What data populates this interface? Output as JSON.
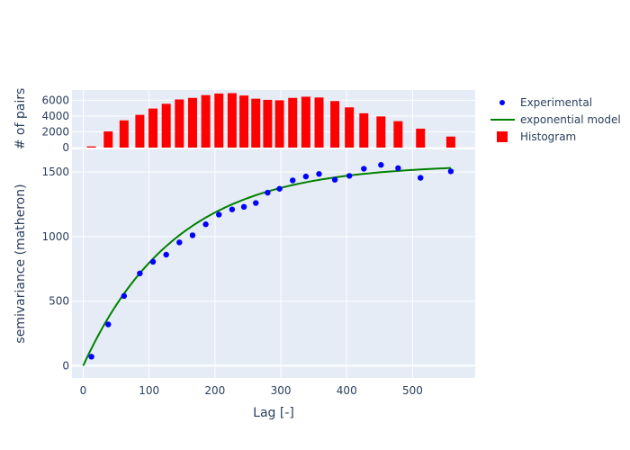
{
  "chart_data": [
    {
      "type": "bar",
      "role": "histogram",
      "ylabel": "# of pairs",
      "x": [
        12.5,
        38,
        62,
        86,
        106,
        126,
        146,
        166,
        186,
        206,
        226,
        244,
        262,
        280,
        298,
        318,
        338,
        358,
        382,
        404,
        426,
        452,
        478,
        512,
        558
      ],
      "values": [
        150,
        2050,
        3450,
        4150,
        4950,
        5550,
        6100,
        6300,
        6650,
        6850,
        6900,
        6600,
        6200,
        6050,
        6000,
        6300,
        6450,
        6350,
        5900,
        5100,
        4350,
        3950,
        3350,
        2400,
        1400
      ],
      "xlim": [
        -17,
        595
      ],
      "ylim": [
        0,
        7300
      ],
      "yticks": [
        0,
        2000,
        4000,
        6000
      ],
      "ytick_labels": [
        "0",
        "2000",
        "4000",
        "6000"
      ],
      "color": "#ff0000"
    },
    {
      "type": "scatter",
      "xlabel": "Lag [-]",
      "ylabel": "semivariance (matheron)",
      "xlim": [
        -17,
        595
      ],
      "ylim": [
        -95,
        1675
      ],
      "xticks": [
        0,
        100,
        200,
        300,
        400,
        500
      ],
      "xtick_labels": [
        "0",
        "100",
        "200",
        "300",
        "400",
        "500"
      ],
      "yticks": [
        0,
        500,
        1000,
        1500
      ],
      "ytick_labels": [
        "0",
        "500",
        "1000",
        "1500"
      ],
      "series": [
        {
          "name": "Experimental",
          "mode": "markers",
          "color": "#0000ff",
          "x": [
            12.5,
            38,
            62,
            86,
            106,
            126,
            146,
            166,
            186,
            206,
            226,
            244,
            262,
            280,
            298,
            318,
            338,
            358,
            382,
            404,
            426,
            452,
            478,
            512,
            558
          ],
          "y": [
            70,
            320,
            540,
            715,
            805,
            860,
            955,
            1010,
            1095,
            1170,
            1210,
            1230,
            1260,
            1340,
            1370,
            1435,
            1465,
            1485,
            1440,
            1470,
            1525,
            1555,
            1530,
            1455,
            1505
          ]
        },
        {
          "name": "exponential model",
          "mode": "lines",
          "color": "#008000",
          "model": {
            "kind": "exponential",
            "sill": 1560,
            "range": 420,
            "nugget": 0
          },
          "x_range": [
            0,
            558
          ]
        }
      ]
    }
  ],
  "legend": {
    "items": [
      {
        "label": "Experimental",
        "symbol": "dot",
        "color": "#0000ff"
      },
      {
        "label": "exponential model",
        "symbol": "line",
        "color": "#008000"
      },
      {
        "label": "Histogram",
        "symbol": "square",
        "color": "#ff0000"
      }
    ]
  },
  "style": {
    "plot_bg": "#e5ecf6",
    "grid": "#ffffff",
    "text": "#2a3f5f"
  }
}
